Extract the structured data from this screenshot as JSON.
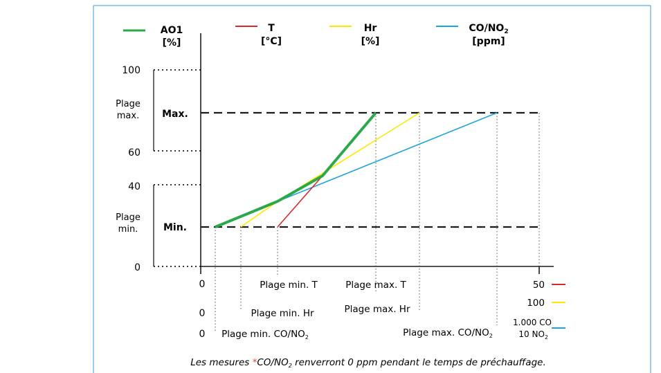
{
  "legend": {
    "ao1": {
      "name": "AO1",
      "unit": "[%]",
      "color": "#2aa84a"
    },
    "t": {
      "name": "T",
      "unit": "[°C]",
      "color": "#d62b26"
    },
    "hr": {
      "name": "Hr",
      "unit": "[%]",
      "color": "#ffe800"
    },
    "co_no2": {
      "name": "CO/NO",
      "name_sub": "2",
      "unit": "[ppm]",
      "color": "#1ea4dc"
    }
  },
  "y_axis": {
    "ticks": [
      "100",
      "60",
      "40",
      "0"
    ],
    "range_max_label": [
      "Plage",
      "max."
    ],
    "range_min_label": [
      "Plage",
      "min."
    ],
    "max_level_label": "Max.",
    "min_level_label": "Min."
  },
  "x_rows": [
    {
      "zero": "0",
      "min_label": "Plage min. T",
      "max_label": "Plage max. T",
      "end_value": "50",
      "color": "#d62b26"
    },
    {
      "zero": "0",
      "min_label": "Plage min. Hr",
      "max_label": "Plage max. Hr",
      "end_value": "100",
      "color": "#ffe800"
    },
    {
      "zero": "0",
      "min_label": "Plage min. CO/NO",
      "min_sub": "2",
      "max_label": "Plage max. CO/NO",
      "max_sub": "2",
      "end_value_line1": "1.000 CO",
      "end_value_line2": "10 NO",
      "end_value_sub": "2",
      "color": "#1ea4dc"
    }
  ],
  "x_axis_top_zero": "0",
  "footnote": {
    "prefix": "Les mesures ",
    "star": "*",
    "star_color": "#e8413c",
    "species": "CO/NO",
    "species_sub": "2",
    "suffix": " renverront 0 ppm pendant le temps de préchauffage."
  }
}
